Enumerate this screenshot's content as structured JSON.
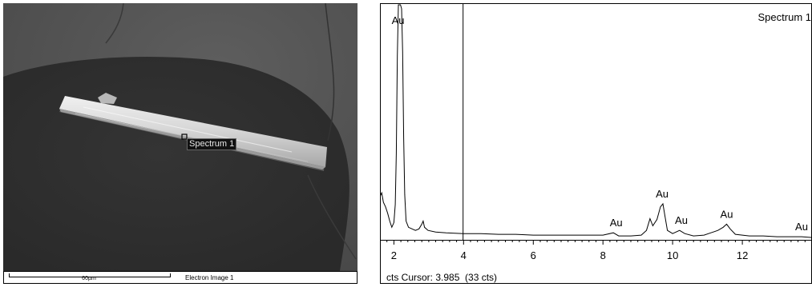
{
  "electron_image": {
    "scale_label": "60µm",
    "image_name": "Electron Image 1",
    "spot_label": "Spectrum 1"
  },
  "spectrum": {
    "cursor_readout": "cts Cursor: 3.985  (33 cts)"
  },
  "chart_data": {
    "type": "line",
    "title": "Spectrum 1",
    "xlabel": "",
    "ylabel": "",
    "xlim": [
      1.6,
      14.0
    ],
    "ylim": [
      0,
      300
    ],
    "xticks": [
      2,
      4,
      6,
      8,
      10,
      12
    ],
    "grid": false,
    "cursor_x": 3.985,
    "cursor_counts": 33,
    "series": [
      {
        "values": [
          [
            1.6,
            55
          ],
          [
            1.65,
            60
          ],
          [
            1.7,
            48
          ],
          [
            1.76,
            42
          ],
          [
            1.82,
            34
          ],
          [
            1.88,
            24
          ],
          [
            1.94,
            16
          ],
          [
            2.0,
            22
          ],
          [
            2.04,
            45
          ],
          [
            2.07,
            110
          ],
          [
            2.1,
            235
          ],
          [
            2.13,
            300
          ],
          [
            2.16,
            300
          ],
          [
            2.19,
            300
          ],
          [
            2.22,
            295
          ],
          [
            2.25,
            240
          ],
          [
            2.28,
            130
          ],
          [
            2.31,
            58
          ],
          [
            2.35,
            24
          ],
          [
            2.42,
            16
          ],
          [
            2.52,
            14
          ],
          [
            2.62,
            12
          ],
          [
            2.72,
            14
          ],
          [
            2.8,
            20
          ],
          [
            2.84,
            24
          ],
          [
            2.88,
            16
          ],
          [
            2.98,
            12
          ],
          [
            3.2,
            10
          ],
          [
            3.5,
            9
          ],
          [
            4.0,
            8
          ],
          [
            4.5,
            8
          ],
          [
            5.0,
            7
          ],
          [
            5.5,
            7
          ],
          [
            6.0,
            6
          ],
          [
            6.5,
            6
          ],
          [
            7.0,
            6
          ],
          [
            7.5,
            6
          ],
          [
            8.0,
            6
          ],
          [
            8.3,
            9
          ],
          [
            8.45,
            5
          ],
          [
            8.8,
            5
          ],
          [
            9.1,
            6
          ],
          [
            9.25,
            12
          ],
          [
            9.35,
            27
          ],
          [
            9.43,
            18
          ],
          [
            9.55,
            26
          ],
          [
            9.65,
            42
          ],
          [
            9.72,
            46
          ],
          [
            9.78,
            30
          ],
          [
            9.85,
            12
          ],
          [
            10.0,
            8
          ],
          [
            10.2,
            12
          ],
          [
            10.35,
            8
          ],
          [
            10.6,
            5
          ],
          [
            10.9,
            6
          ],
          [
            11.1,
            9
          ],
          [
            11.3,
            12
          ],
          [
            11.45,
            16
          ],
          [
            11.55,
            20
          ],
          [
            11.65,
            14
          ],
          [
            11.8,
            7
          ],
          [
            12.2,
            5
          ],
          [
            12.6,
            5
          ],
          [
            13.0,
            4
          ],
          [
            13.4,
            4
          ],
          [
            13.7,
            4
          ],
          [
            14.0,
            3
          ]
        ]
      }
    ],
    "annotations": [
      {
        "text": "Au",
        "x": 2.12,
        "y": 300
      },
      {
        "text": "Au",
        "x": 8.38,
        "y": 9
      },
      {
        "text": "Au",
        "x": 9.7,
        "y": 46
      },
      {
        "text": "Au",
        "x": 10.25,
        "y": 12
      },
      {
        "text": "Au",
        "x": 11.55,
        "y": 20
      },
      {
        "text": "Au",
        "x": 13.7,
        "y": 4
      }
    ]
  }
}
